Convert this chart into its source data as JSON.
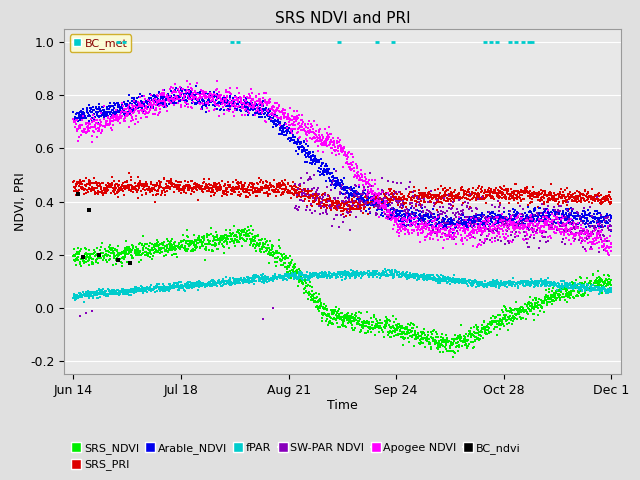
{
  "title": "SRS NDVI and PRI",
  "xlabel": "Time",
  "ylabel": "NDVI, PRI",
  "ylim": [
    -0.25,
    1.05
  ],
  "yticks": [
    -0.2,
    0.0,
    0.2,
    0.4,
    0.6,
    0.8,
    1.0
  ],
  "xtick_labels": [
    "Jun 14",
    "Jul 18",
    "Aug 21",
    "Sep 24",
    "Oct 28",
    "Dec 1"
  ],
  "xtick_days": [
    0,
    34,
    68,
    102,
    136,
    170
  ],
  "bg_color": "#e0e0e0",
  "plot_bg_color": "#e8e8e8",
  "grid_color": "#ffffff",
  "colors": {
    "SRS_NDVI": "#00ee00",
    "SRS_PRI": "#dd0000",
    "Arable_NDVI": "#0000ee",
    "fPAR": "#00cccc",
    "SW_PAR_NDVI": "#8800bb",
    "Apogee_NDVI": "#ff00ff",
    "BC_ndvi": "#000000",
    "BC_met": "#00cccc"
  }
}
